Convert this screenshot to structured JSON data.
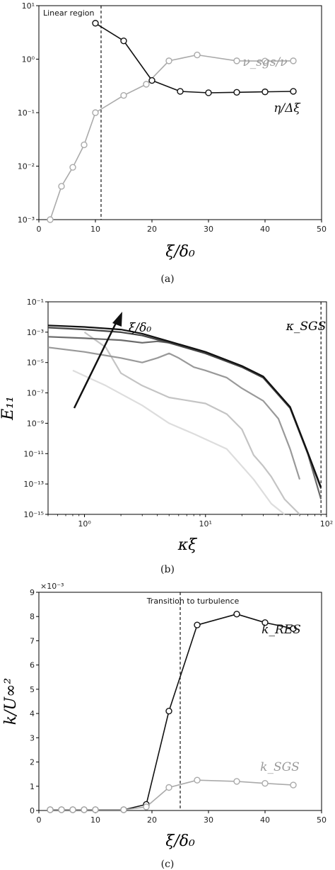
{
  "chart_data": [
    {
      "type": "line",
      "panel_label": "(a)",
      "xlabel": "ξ/δ₀",
      "ylabel": "",
      "xlim": [
        0,
        50
      ],
      "ylim": [
        0.001,
        10
      ],
      "yscale": "log",
      "x_ticks": [
        "0",
        "10",
        "20",
        "30",
        "40",
        "50"
      ],
      "y_ticks": [
        "10⁻³",
        "10⁻²",
        "10⁻¹",
        "10⁰",
        "10¹"
      ],
      "grid": false,
      "vline": {
        "x": 11,
        "label": "Linear region"
      },
      "series": [
        {
          "name": "ν_sgs/ν",
          "color": "#aaaaaa",
          "marker": "circle",
          "x": [
            2,
            4,
            6,
            8,
            10,
            15,
            19,
            23,
            28,
            35,
            40,
            45
          ],
          "y": [
            0.001,
            0.0042,
            0.0095,
            0.025,
            0.1,
            0.21,
            0.34,
            0.93,
            1.2,
            0.93,
            0.92,
            0.93
          ]
        },
        {
          "name": "η/Δξ",
          "color": "#111111",
          "marker": "circle",
          "x": [
            10,
            15,
            20,
            25,
            30,
            35,
            40,
            45
          ],
          "y": [
            4.7,
            2.2,
            0.4,
            0.25,
            0.235,
            0.24,
            0.245,
            0.25
          ]
        }
      ]
    },
    {
      "type": "line",
      "panel_label": "(b)",
      "xlabel": "κξ",
      "ylabel": "E₁₁",
      "xscale": "log",
      "yscale": "log",
      "xlim": [
        0.5,
        100
      ],
      "ylim": [
        1e-15,
        0.1
      ],
      "x_ticks": [
        "10⁰",
        "10¹",
        "10²"
      ],
      "y_ticks": [
        "10⁻¹⁵",
        "10⁻¹³",
        "10⁻¹¹",
        "10⁻⁹",
        "10⁻⁷",
        "10⁻⁵",
        "10⁻³",
        "10⁻¹"
      ],
      "grid": false,
      "vline": {
        "x": 90,
        "label": "κ_SGS"
      },
      "arrow_label": "ξ/δ₀",
      "series": [
        {
          "color": "#dddddd",
          "x": [
            0.8,
            1.5,
            3,
            5,
            8,
            15,
            25,
            35,
            45
          ],
          "y": [
            3e-06,
            3e-07,
            1.5e-08,
            1e-09,
            2e-10,
            2e-11,
            2e-13,
            5e-15,
            1e-15
          ]
        },
        {
          "color": "#c4c4c4",
          "x": [
            1,
            1.5,
            2,
            3,
            5,
            10,
            15,
            20,
            25,
            30,
            35,
            45,
            60
          ],
          "y": [
            0.001,
            0.0001,
            2e-06,
            3e-07,
            5e-08,
            2e-08,
            4e-09,
            4e-10,
            8e-12,
            1.5e-12,
            3e-13,
            1e-14,
            1e-15
          ]
        },
        {
          "color": "#999999",
          "x": [
            0.5,
            1,
            2,
            3,
            4,
            5,
            6,
            8,
            10,
            15,
            20,
            30,
            40,
            50,
            60
          ],
          "y": [
            0.0001,
            5e-05,
            2e-05,
            1e-05,
            2e-05,
            4e-05,
            2e-05,
            5e-06,
            3e-06,
            1e-06,
            2e-07,
            3e-08,
            2e-09,
            2e-11,
            2e-13
          ]
        },
        {
          "color": "#6a6a6a",
          "x": [
            0.5,
            1,
            2,
            3,
            4,
            5,
            10,
            20,
            30,
            50,
            70,
            90
          ],
          "y": [
            0.0005,
            0.0004,
            0.0003,
            0.0002,
            0.00025,
            0.0002,
            4e-05,
            5e-06,
            1e-06,
            1e-08,
            1e-11,
            1e-14
          ]
        },
        {
          "color": "#444444",
          "x": [
            0.5,
            1,
            2,
            3,
            5,
            10,
            20,
            30,
            50,
            70,
            90
          ],
          "y": [
            0.002,
            0.0015,
            0.001,
            0.0006,
            0.0002,
            4e-05,
            5e-06,
            1e-06,
            1e-08,
            1e-11,
            5e-14
          ]
        },
        {
          "color": "#111111",
          "x": [
            0.5,
            1,
            2,
            3,
            5,
            10,
            20,
            30,
            50,
            70,
            90
          ],
          "y": [
            0.0028,
            0.0022,
            0.0015,
            0.0008,
            0.00025,
            5e-05,
            6e-06,
            1.2e-06,
            1.2e-08,
            1.2e-11,
            6e-14
          ]
        }
      ]
    },
    {
      "type": "line",
      "panel_label": "(c)",
      "xlabel": "ξ/δ₀",
      "ylabel": "k/U∞²",
      "xlim": [
        0,
        50
      ],
      "ylim": [
        0,
        9
      ],
      "y_multiplier": "×10⁻³",
      "x_ticks": [
        "0",
        "10",
        "20",
        "30",
        "40",
        "50"
      ],
      "y_ticks": [
        "0",
        "1",
        "2",
        "3",
        "4",
        "5",
        "6",
        "7",
        "8",
        "9"
      ],
      "grid": false,
      "vline": {
        "x": 25,
        "label": "Transition to turbulence"
      },
      "series": [
        {
          "name": "k_RES",
          "color": "#111111",
          "marker": "circle",
          "x": [
            2,
            4,
            6,
            8,
            10,
            15,
            19,
            23,
            28,
            35,
            40,
            45
          ],
          "y": [
            0.03,
            0.03,
            0.03,
            0.03,
            0.03,
            0.03,
            0.25,
            4.1,
            7.65,
            8.1,
            7.75,
            7.5
          ]
        },
        {
          "name": "k_SGS",
          "color": "#aaaaaa",
          "marker": "circle",
          "x": [
            2,
            4,
            6,
            8,
            10,
            15,
            19,
            23,
            28,
            35,
            40,
            45
          ],
          "y": [
            0.03,
            0.03,
            0.03,
            0.03,
            0.03,
            0.03,
            0.15,
            0.95,
            1.25,
            1.2,
            1.12,
            1.05
          ]
        }
      ]
    }
  ]
}
